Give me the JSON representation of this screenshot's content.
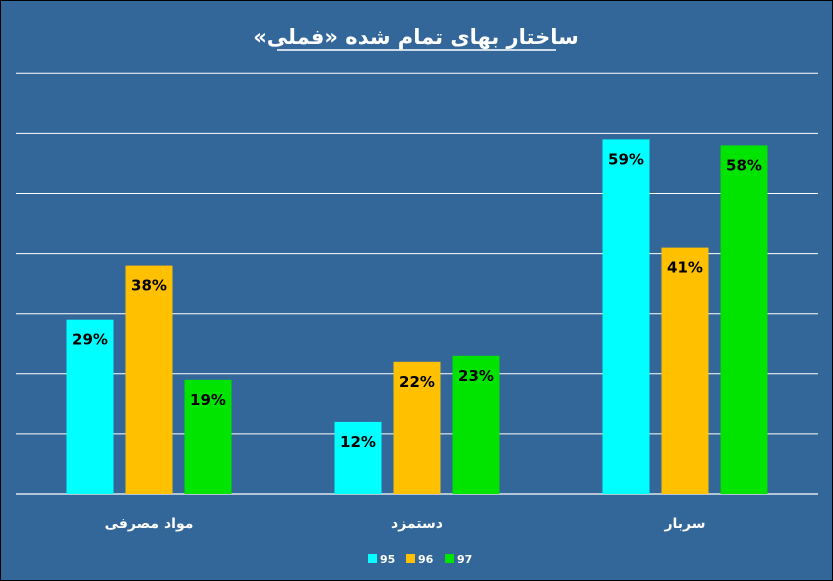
{
  "chart_data": {
    "type": "bar",
    "title": "ساختار بهای تمام شده «فملی»",
    "categories": [
      "مواد مصرفی",
      "دستمزد",
      "سربار"
    ],
    "series": [
      {
        "name": "95",
        "color": "#00FFFF",
        "values": [
          29,
          12,
          59
        ],
        "labels": [
          "29%",
          "12%",
          "59%"
        ]
      },
      {
        "name": "96",
        "color": "#FFC000",
        "values": [
          38,
          22,
          41
        ],
        "labels": [
          "38%",
          "22%",
          "41%"
        ]
      },
      {
        "name": "97",
        "color": "#00E400",
        "values": [
          19,
          23,
          58
        ],
        "labels": [
          "19%",
          "23%",
          "58%"
        ]
      }
    ],
    "ylim": [
      0,
      70
    ],
    "grid": true,
    "legend_position": "bottom",
    "colors": {
      "background": "#336699",
      "gridline": "#FFFFFF",
      "title_text": "#FFFFFF",
      "label_text": "#000000"
    }
  }
}
